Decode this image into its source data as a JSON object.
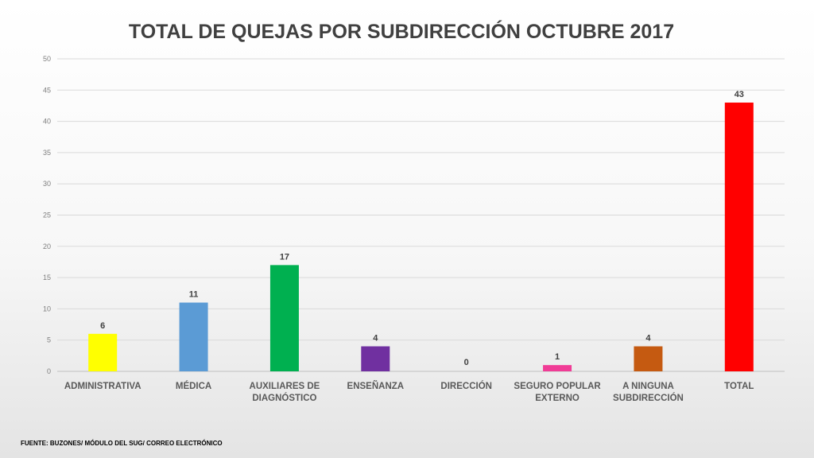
{
  "source": "FUENTE: BUZONES/ MÓDULO DEL SUG/ CORREO ELECTRÓNICO",
  "chart_data": {
    "type": "bar",
    "title": "TOTAL DE QUEJAS POR SUBDIRECCIÓN OCTUBRE 2017",
    "xlabel": "",
    "ylabel": "",
    "ylim": [
      0,
      50
    ],
    "yticks": [
      0,
      5,
      10,
      15,
      20,
      25,
      30,
      35,
      40,
      45,
      50
    ],
    "grid": true,
    "categories": [
      [
        "ADMINISTRATIVA"
      ],
      [
        "MÉDICA"
      ],
      [
        "AUXILIARES DE",
        "DIAGNÓSTICO"
      ],
      [
        "ENSEÑANZA"
      ],
      [
        "DIRECCIÓN"
      ],
      [
        "SEGURO POPULAR",
        "EXTERNO"
      ],
      [
        "A NINGUNA",
        "SUBDIRECCIÓN"
      ],
      [
        "TOTAL"
      ]
    ],
    "values": [
      6,
      11,
      17,
      4,
      0,
      1,
      4,
      43
    ],
    "data_labels": [
      "6",
      "11",
      "17",
      "4",
      "0",
      "1",
      "4",
      "43"
    ],
    "colors": [
      "#ffff00",
      "#5b9bd5",
      "#00b050",
      "#7030a0",
      "#c0c0c0",
      "#f03c96",
      "#c55a11",
      "#ff0000"
    ]
  }
}
